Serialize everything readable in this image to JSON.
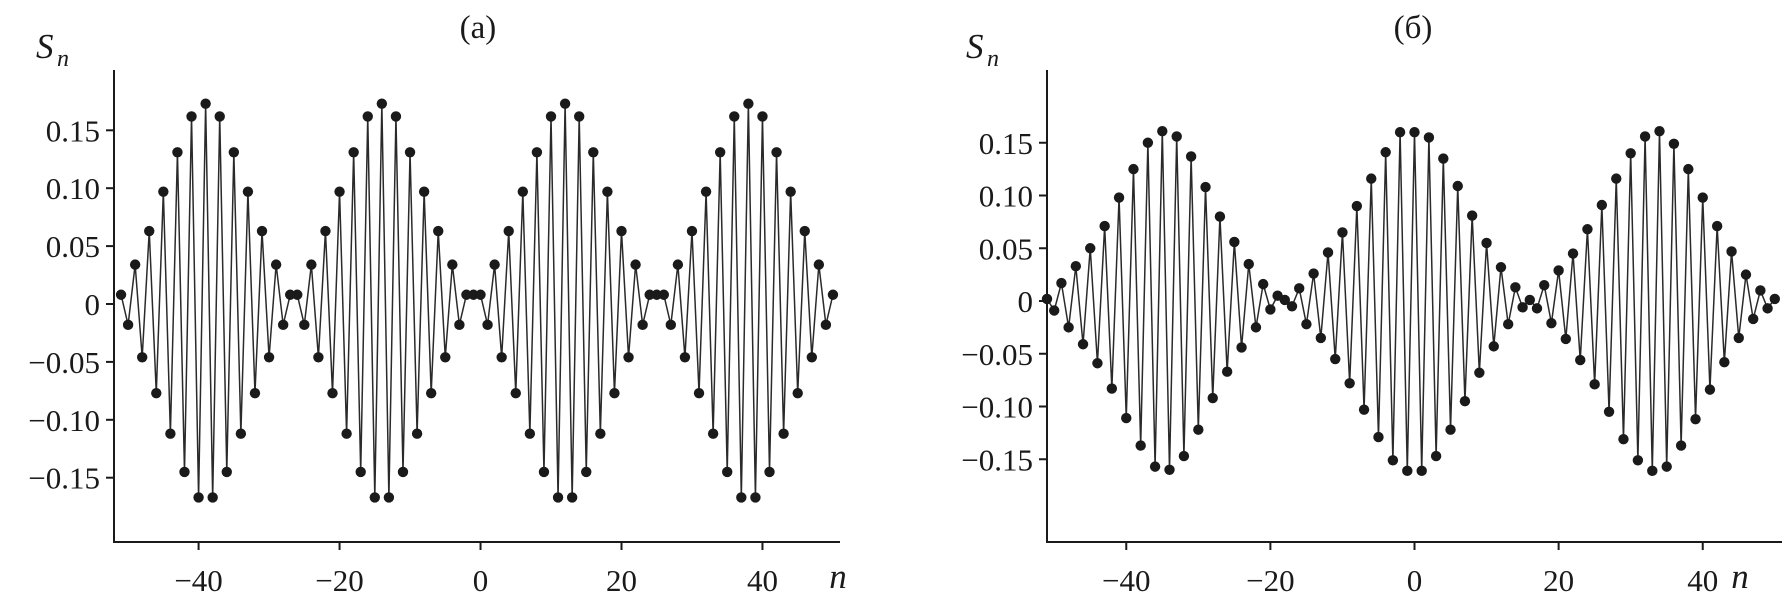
{
  "chart_data": [
    {
      "type": "scatter",
      "title": "(a)",
      "xlabel": "n",
      "ylabel_main": "S",
      "ylabel_sub": "n",
      "xlim": [
        -52,
        51
      ],
      "ylim": [
        -0.2,
        0.2
      ],
      "xticks": [
        -40,
        -20,
        0,
        20,
        40
      ],
      "xtick_labels": [
        "−40",
        "−20",
        "0",
        "20",
        "40"
      ],
      "yticks": [
        0.15,
        0.1,
        0.05,
        0,
        -0.05,
        -0.1,
        -0.15
      ],
      "ytick_labels": [
        "0.15",
        "0.10",
        "0.05",
        "0",
        "−0.05",
        "−0.10",
        "−0.15"
      ],
      "connected": true,
      "grid": false,
      "points": [
        [
          -51,
          0.008
        ],
        [
          -50,
          -0.018
        ],
        [
          -49,
          0.034
        ],
        [
          -48,
          -0.046
        ],
        [
          -47,
          0.063
        ],
        [
          -46,
          -0.077
        ],
        [
          -45,
          0.097
        ],
        [
          -44,
          -0.112
        ],
        [
          -43,
          0.131
        ],
        [
          -42,
          -0.145
        ],
        [
          -41,
          0.162
        ],
        [
          -40,
          -0.167
        ],
        [
          -39,
          0.173
        ],
        [
          -38,
          -0.167
        ],
        [
          -37,
          0.162
        ],
        [
          -36,
          -0.145
        ],
        [
          -35,
          0.131
        ],
        [
          -34,
          -0.112
        ],
        [
          -33,
          0.097
        ],
        [
          -32,
          -0.077
        ],
        [
          -31,
          0.063
        ],
        [
          -30,
          -0.046
        ],
        [
          -29,
          0.034
        ],
        [
          -28,
          -0.018
        ],
        [
          -27,
          0.008
        ],
        [
          -26,
          0.008
        ],
        [
          -25,
          -0.018
        ],
        [
          -24,
          0.034
        ],
        [
          -23,
          -0.046
        ],
        [
          -22,
          0.063
        ],
        [
          -21,
          -0.077
        ],
        [
          -20,
          0.097
        ],
        [
          -19,
          -0.112
        ],
        [
          -18,
          0.131
        ],
        [
          -17,
          -0.145
        ],
        [
          -16,
          0.162
        ],
        [
          -15,
          -0.167
        ],
        [
          -14,
          0.173
        ],
        [
          -13,
          -0.167
        ],
        [
          -12,
          0.162
        ],
        [
          -11,
          -0.145
        ],
        [
          -10,
          0.131
        ],
        [
          -9,
          -0.112
        ],
        [
          -8,
          0.097
        ],
        [
          -7,
          -0.077
        ],
        [
          -6,
          0.063
        ],
        [
          -5,
          -0.046
        ],
        [
          -4,
          0.034
        ],
        [
          -3,
          -0.018
        ],
        [
          -2,
          0.008
        ],
        [
          -1,
          0.008
        ],
        [
          0,
          0.008
        ],
        [
          1,
          -0.018
        ],
        [
          2,
          0.034
        ],
        [
          3,
          -0.046
        ],
        [
          4,
          0.063
        ],
        [
          5,
          -0.077
        ],
        [
          6,
          0.097
        ],
        [
          7,
          -0.112
        ],
        [
          8,
          0.131
        ],
        [
          9,
          -0.145
        ],
        [
          10,
          0.162
        ],
        [
          11,
          -0.167
        ],
        [
          12,
          0.173
        ],
        [
          13,
          -0.167
        ],
        [
          14,
          0.162
        ],
        [
          15,
          -0.145
        ],
        [
          16,
          0.131
        ],
        [
          17,
          -0.112
        ],
        [
          18,
          0.097
        ],
        [
          19,
          -0.077
        ],
        [
          20,
          0.063
        ],
        [
          21,
          -0.046
        ],
        [
          22,
          0.034
        ],
        [
          23,
          -0.018
        ],
        [
          24,
          0.008
        ],
        [
          25,
          0.008
        ],
        [
          26,
          0.008
        ],
        [
          27,
          -0.018
        ],
        [
          28,
          0.034
        ],
        [
          29,
          -0.046
        ],
        [
          30,
          0.063
        ],
        [
          31,
          -0.077
        ],
        [
          32,
          0.097
        ],
        [
          33,
          -0.112
        ],
        [
          34,
          0.131
        ],
        [
          35,
          -0.145
        ],
        [
          36,
          0.162
        ],
        [
          37,
          -0.167
        ],
        [
          38,
          0.173
        ],
        [
          39,
          -0.167
        ],
        [
          40,
          0.162
        ],
        [
          41,
          -0.145
        ],
        [
          42,
          0.131
        ],
        [
          43,
          -0.112
        ],
        [
          44,
          0.097
        ],
        [
          45,
          -0.077
        ],
        [
          46,
          0.063
        ],
        [
          47,
          -0.046
        ],
        [
          48,
          0.034
        ],
        [
          49,
          -0.018
        ],
        [
          50,
          0.008
        ]
      ]
    },
    {
      "type": "scatter",
      "title": "(б)",
      "xlabel": "n",
      "ylabel_main": "S",
      "ylabel_sub": "n",
      "xlim": [
        -51,
        51
      ],
      "ylim": [
        -0.2,
        0.2
      ],
      "xticks": [
        -40,
        -20,
        0,
        20,
        40
      ],
      "xtick_labels": [
        "−40",
        "−20",
        "0",
        "20",
        "40"
      ],
      "yticks": [
        0.15,
        0.1,
        0.05,
        0,
        -0.05,
        -0.1,
        -0.15
      ],
      "ytick_labels": [
        "0.15",
        "0.10",
        "0.05",
        "0",
        "−0.05",
        "−0.10",
        "−0.15"
      ],
      "connected": true,
      "grid": false,
      "points": [
        [
          -51,
          0.002
        ],
        [
          -50,
          -0.009
        ],
        [
          -49,
          0.017
        ],
        [
          -48,
          -0.025
        ],
        [
          -47,
          0.033
        ],
        [
          -46,
          -0.041
        ],
        [
          -45,
          0.05
        ],
        [
          -44,
          -0.059
        ],
        [
          -43,
          0.071
        ],
        [
          -42,
          -0.083
        ],
        [
          -41,
          0.098
        ],
        [
          -40,
          -0.111
        ],
        [
          -39,
          0.125
        ],
        [
          -38,
          -0.137
        ],
        [
          -37,
          0.15
        ],
        [
          -36,
          -0.157
        ],
        [
          -35,
          0.161
        ],
        [
          -34,
          -0.16
        ],
        [
          -33,
          0.156
        ],
        [
          -32,
          -0.147
        ],
        [
          -31,
          0.137
        ],
        [
          -30,
          -0.122
        ],
        [
          -29,
          0.108
        ],
        [
          -28,
          -0.092
        ],
        [
          -27,
          0.08
        ],
        [
          -26,
          -0.067
        ],
        [
          -25,
          0.056
        ],
        [
          -24,
          -0.044
        ],
        [
          -23,
          0.035
        ],
        [
          -22,
          -0.025
        ],
        [
          -21,
          0.016
        ],
        [
          -20,
          -0.008
        ],
        [
          -19,
          0.005
        ],
        [
          -18,
          0.001
        ],
        [
          -17,
          -0.005
        ],
        [
          -16,
          0.012
        ],
        [
          -15,
          -0.022
        ],
        [
          -14,
          0.026
        ],
        [
          -13,
          -0.035
        ],
        [
          -12,
          0.046
        ],
        [
          -11,
          -0.055
        ],
        [
          -10,
          0.065
        ],
        [
          -9,
          -0.078
        ],
        [
          -8,
          0.09
        ],
        [
          -7,
          -0.103
        ],
        [
          -6,
          0.116
        ],
        [
          -5,
          -0.129
        ],
        [
          -4,
          0.141
        ],
        [
          -3,
          -0.151
        ],
        [
          -2,
          0.16
        ],
        [
          -1,
          -0.161
        ],
        [
          0,
          0.16
        ],
        [
          1,
          -0.161
        ],
        [
          2,
          0.155
        ],
        [
          3,
          -0.147
        ],
        [
          4,
          0.135
        ],
        [
          5,
          -0.122
        ],
        [
          6,
          0.109
        ],
        [
          7,
          -0.095
        ],
        [
          8,
          0.081
        ],
        [
          9,
          -0.068
        ],
        [
          10,
          0.055
        ],
        [
          11,
          -0.043
        ],
        [
          12,
          0.032
        ],
        [
          13,
          -0.022
        ],
        [
          14,
          0.013
        ],
        [
          15,
          -0.006
        ],
        [
          16,
          0.001
        ],
        [
          17,
          -0.007
        ],
        [
          18,
          0.015
        ],
        [
          19,
          -0.021
        ],
        [
          20,
          0.029
        ],
        [
          21,
          -0.036
        ],
        [
          22,
          0.045
        ],
        [
          23,
          -0.056
        ],
        [
          24,
          0.068
        ],
        [
          25,
          -0.079
        ],
        [
          26,
          0.091
        ],
        [
          27,
          -0.105
        ],
        [
          28,
          0.116
        ],
        [
          29,
          -0.131
        ],
        [
          30,
          0.14
        ],
        [
          31,
          -0.151
        ],
        [
          32,
          0.156
        ],
        [
          33,
          -0.161
        ],
        [
          34,
          0.161
        ],
        [
          35,
          -0.157
        ],
        [
          36,
          0.149
        ],
        [
          37,
          -0.137
        ],
        [
          38,
          0.125
        ],
        [
          39,
          -0.112
        ],
        [
          40,
          0.098
        ],
        [
          41,
          -0.084
        ],
        [
          42,
          0.071
        ],
        [
          43,
          -0.058
        ],
        [
          44,
          0.047
        ],
        [
          45,
          -0.035
        ],
        [
          46,
          0.025
        ],
        [
          47,
          -0.017
        ],
        [
          48,
          0.01
        ],
        [
          49,
          -0.007
        ],
        [
          50,
          0.002
        ]
      ]
    }
  ]
}
